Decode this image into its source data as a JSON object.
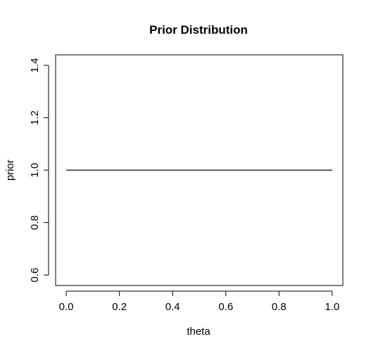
{
  "chart_data": {
    "type": "line",
    "title": "Prior Distribution",
    "xlabel": "theta",
    "ylabel": "prior",
    "xlim": [
      -0.04,
      1.04
    ],
    "ylim": [
      0.56,
      1.44
    ],
    "x_ticks": [
      0.0,
      0.2,
      0.4,
      0.6,
      0.8,
      1.0
    ],
    "x_tick_labels": [
      "0.0",
      "0.2",
      "0.4",
      "0.6",
      "0.8",
      "1.0"
    ],
    "y_ticks": [
      0.6,
      0.8,
      1.0,
      1.2,
      1.4
    ],
    "y_tick_labels": [
      "0.6",
      "0.8",
      "1.0",
      "1.2",
      "1.4"
    ],
    "grid": false,
    "series": [
      {
        "x": [
          0.0,
          1.0
        ],
        "y": [
          1.0,
          1.0
        ],
        "color": "#000000"
      }
    ]
  }
}
